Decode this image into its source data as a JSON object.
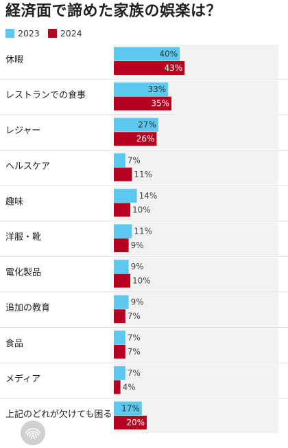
{
  "chart_data": {
    "type": "bar",
    "orientation": "horizontal",
    "title": "経済面で諦めた家族の娯楽は？",
    "xlabel": "",
    "ylabel": "",
    "unit": "%",
    "xlim": [
      0,
      100
    ],
    "legend_position": "top-left",
    "grid": false,
    "categories": [
      "休暇",
      "レストランでの食事",
      "レジャー",
      "ヘルスケア",
      "趣味",
      "洋服・靴",
      "電化製品",
      "追加の教育",
      "食品",
      "メディア",
      "上記のどれが欠けても困る"
    ],
    "series": [
      {
        "name": "2023",
        "color": "#5bc8ef",
        "values": [
          40,
          33,
          27,
          7,
          14,
          11,
          9,
          9,
          7,
          7,
          17
        ]
      },
      {
        "name": "2024",
        "color": "#b5001f",
        "values": [
          43,
          35,
          26,
          11,
          10,
          9,
          10,
          7,
          7,
          4,
          20
        ]
      }
    ]
  },
  "colors": {
    "row_background": "#f2f2f2",
    "separator": "#dddddd",
    "label_text": "#1f1f1f",
    "value_text_inside_dark": "#ffffff",
    "value_text_outside": "#444444"
  }
}
